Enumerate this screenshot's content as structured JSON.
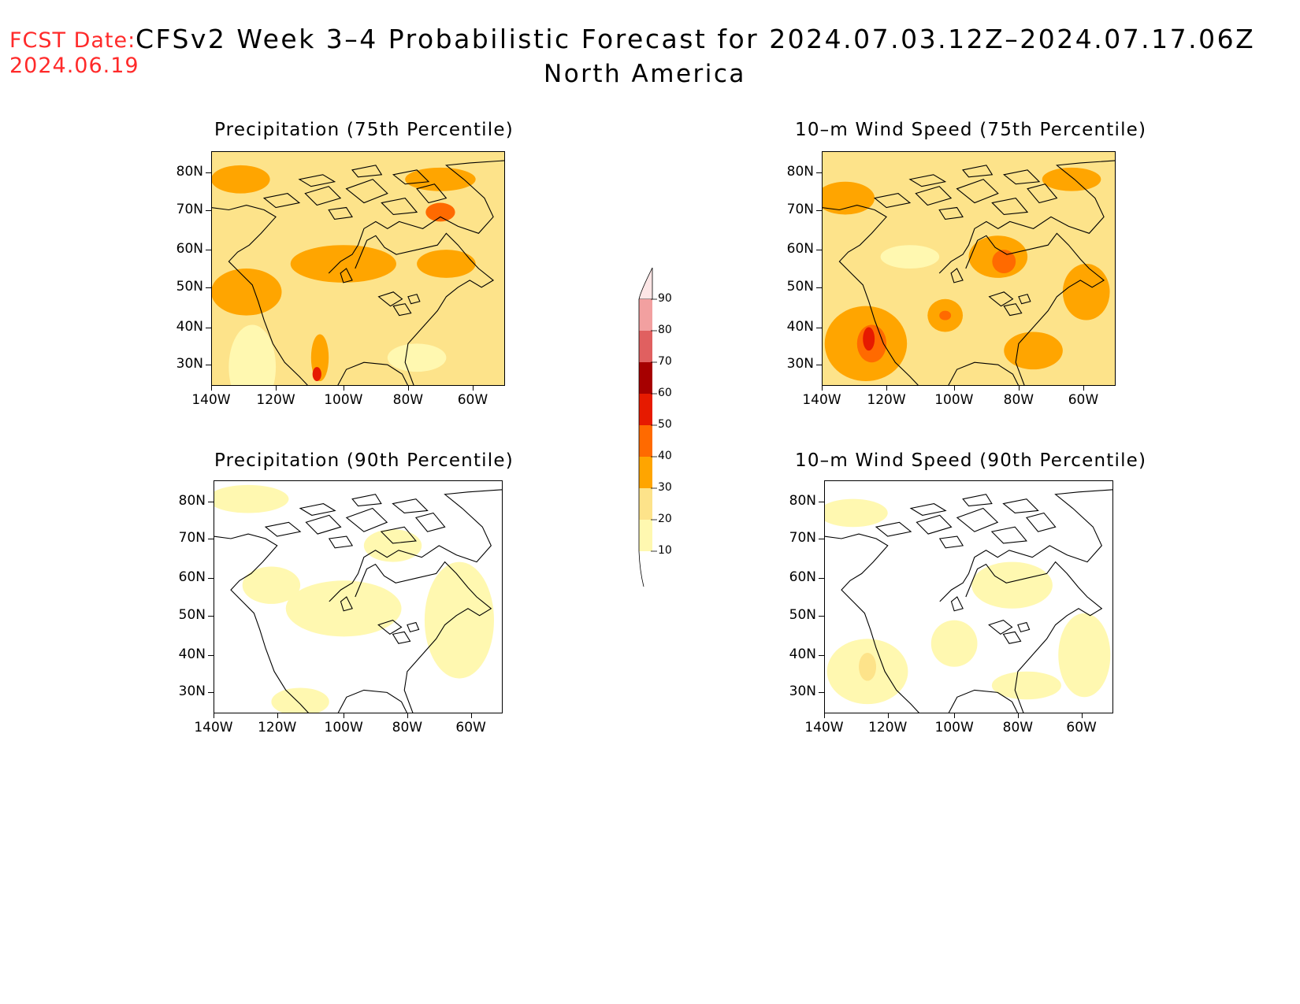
{
  "header": {
    "fcst_label": "FCST Date:",
    "fcst_date": "2024.06.19",
    "title": "CFSv2 Week 3–4 Probabilistic Forecast for 2024.07.03.12Z–2024.07.17.06Z",
    "region": "North America"
  },
  "colors": {
    "levels": [
      10,
      20,
      30,
      40,
      50,
      60,
      70,
      80,
      90
    ],
    "fills": [
      "#fff8b0",
      "#fde38a",
      "#ffa500",
      "#ff6a00",
      "#e61a00",
      "#a60000",
      "#e06060",
      "#f2a0a0",
      "#fde6e6"
    ]
  },
  "axes": {
    "lat_ticks": [
      "80N",
      "70N",
      "60N",
      "50N",
      "40N",
      "30N"
    ],
    "lon_ticks": [
      "140W",
      "120W",
      "100W",
      "80W",
      "60W"
    ]
  },
  "panels": [
    {
      "title": "Precipitation (75th Percentile)",
      "base_level": 20
    },
    {
      "title": "10–m Wind Speed (75th Percentile)",
      "base_level": 20
    },
    {
      "title": "Precipitation (90th Percentile)",
      "base_level": 0
    },
    {
      "title": "10–m Wind Speed (90th Percentile)",
      "base_level": 0
    }
  ],
  "colorbar": {
    "labels": [
      "90",
      "80",
      "70",
      "60",
      "50",
      "40",
      "30",
      "20",
      "10"
    ]
  }
}
